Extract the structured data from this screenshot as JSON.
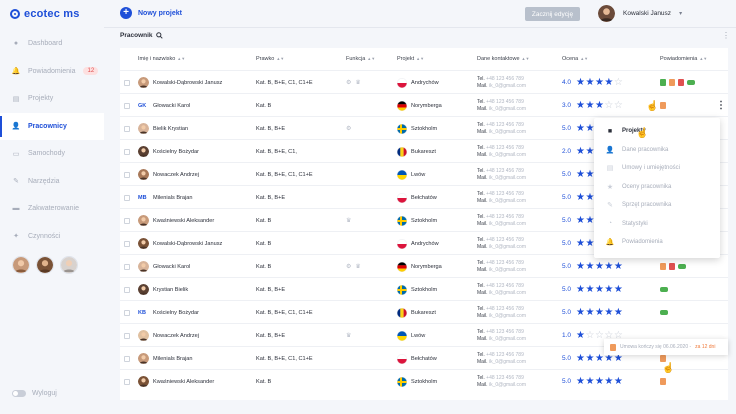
{
  "app": {
    "logo": "ecotec ms"
  },
  "sidebar": {
    "items": [
      {
        "label": "Dashboard",
        "icon": "circle-icon"
      },
      {
        "label": "Powiadomienia",
        "icon": "bell-icon",
        "badge": "12"
      },
      {
        "label": "Projekty",
        "icon": "folder-icon"
      },
      {
        "label": "Pracownicy",
        "icon": "user-icon",
        "active": true
      },
      {
        "label": "Samochody",
        "icon": "car-icon"
      },
      {
        "label": "Narzędzia",
        "icon": "wrench-icon"
      },
      {
        "label": "Zakwaterowanie",
        "icon": "bed-icon"
      },
      {
        "label": "Czynności",
        "icon": "puzzle-icon"
      }
    ],
    "logout_label": "Wyloguj"
  },
  "topbar": {
    "new_project_label": "Nowy projekt",
    "edit_button_label": "Zacznij edycję",
    "user_name": "Kowalski Janusz"
  },
  "section": {
    "title": "Pracownik"
  },
  "table": {
    "columns": [
      "Imię i nazwisko",
      "Prawko",
      "Funkcja",
      "Projekt",
      "Dane kontaktowe",
      "Ocena",
      "Powiadomienia"
    ],
    "contact_tel_label": "Tel.",
    "contact_mail_label": "Mail.",
    "contact_tel": "+48 123 456 789",
    "contact_mail": "ik_0@gmail.com",
    "rows": [
      {
        "name": "Kowalski-Dąbrowski Janusz",
        "avatar": true,
        "license": "Kat. B, B+E, C1, C1+E",
        "func": [
          "cog",
          "crown"
        ],
        "project": "Andrychów",
        "flag": "pl",
        "rating": "4.0",
        "stars": 4,
        "notif": [
          "green",
          "orange",
          "red",
          "green-car"
        ]
      },
      {
        "name": "Głowacki Karol",
        "initials": "GK",
        "license": "Kat. B",
        "func": [],
        "project": "Norymberga",
        "flag": "de",
        "rating": "3.0",
        "stars": 3,
        "notif": [
          "orange-cursor"
        ]
      },
      {
        "name": "Bielik Krystian",
        "avatar": true,
        "license": "Kat. B, B+E",
        "func": [
          "cog"
        ],
        "project": "Sztokholm",
        "flag": "se",
        "rating": "5.0",
        "stars": 5,
        "notif": []
      },
      {
        "name": "Kościelny Bożydar",
        "avatar": true,
        "license": "Kat. B, B+E, C1,",
        "func": [],
        "project": "Bukareszt",
        "flag": "ro",
        "rating": "2.0",
        "stars": 2,
        "notif": []
      },
      {
        "name": "Nowaczek Andrzej",
        "avatar": true,
        "license": "Kat. B, B+E, C1, C1+E",
        "func": [],
        "project": "Lwów",
        "flag": "ua",
        "rating": "5.0",
        "stars": 5,
        "notif": []
      },
      {
        "name": "Milenials Brajan",
        "initials": "MB",
        "license": "Kat. B, B+E",
        "func": [],
        "project": "Bełchatów",
        "flag": "pl",
        "rating": "5.0",
        "stars": 5,
        "notif": []
      },
      {
        "name": "Kwaśniewski Aleksander",
        "avatar": true,
        "license": "Kat. B",
        "func": [
          "crown"
        ],
        "project": "Sztokholm",
        "flag": "se",
        "rating": "5.0",
        "stars": 5,
        "notif": []
      },
      {
        "name": "Kowalski-Dąbrowski Janusz",
        "avatar": true,
        "license": "Kat. B",
        "func": [],
        "project": "Andrychów",
        "flag": "pl",
        "rating": "5.0",
        "stars": 5,
        "notif": []
      },
      {
        "name": "Głowacki Karol",
        "avatar": true,
        "license": "Kat. B",
        "func": [
          "cog",
          "crown"
        ],
        "project": "Norymberga",
        "flag": "de",
        "rating": "5.0",
        "stars": 5,
        "notif": [
          "orange",
          "red",
          "green-car"
        ]
      },
      {
        "name": "Krystian Bielik",
        "avatar": true,
        "license": "Kat. B, B+E",
        "func": [],
        "project": "Sztokholm",
        "flag": "se",
        "rating": "5.0",
        "stars": 5,
        "notif": [
          "green-car"
        ]
      },
      {
        "name": "Kościelny Bożydar",
        "initials": "KB",
        "license": "Kat. B, B+E, C1, C1+E",
        "func": [],
        "project": "Bukareszt",
        "flag": "ro",
        "rating": "5.0",
        "stars": 5,
        "notif": [
          "green-car"
        ]
      },
      {
        "name": "Nowaczek Andrzej",
        "avatar": true,
        "license": "Kat. B, B+E",
        "func": [
          "crown"
        ],
        "project": "Lwów",
        "flag": "ua",
        "rating": "1.0",
        "stars": 1,
        "notif": []
      },
      {
        "name": "Milenials Brajan",
        "avatar": true,
        "license": "Kat. B, B+E, C1, C1+E",
        "func": [],
        "project": "Bełchatów",
        "flag": "pl",
        "rating": "5.0",
        "stars": 5,
        "notif": [
          "orange"
        ]
      },
      {
        "name": "Kwaśniewski Aleksander",
        "avatar": true,
        "license": "Kat. B",
        "func": [],
        "project": "Sztokholm",
        "flag": "se",
        "rating": "5.0",
        "stars": 5,
        "notif": [
          "orange-cursor"
        ]
      }
    ]
  },
  "context_menu": {
    "items": [
      {
        "label": "Projekty",
        "active": true,
        "icon": "project-icon"
      },
      {
        "label": "Dane pracownika",
        "icon": "user-icon"
      },
      {
        "label": "Umowy i umiejętności",
        "icon": "document-icon"
      },
      {
        "label": "Oceny pracownika",
        "icon": "star-icon"
      },
      {
        "label": "Sprzęt pracownika",
        "icon": "wrench-icon"
      },
      {
        "label": "Statystyki",
        "icon": "pie-chart-icon"
      },
      {
        "label": "Powiadomienia",
        "icon": "bell-icon"
      }
    ]
  },
  "tooltip": {
    "text": "Umowa kończy się 06.06.2020 -",
    "warning": "za 12 dni"
  },
  "colors": {
    "accent": "#1e4fd8",
    "star_off": "#c9ced8"
  }
}
